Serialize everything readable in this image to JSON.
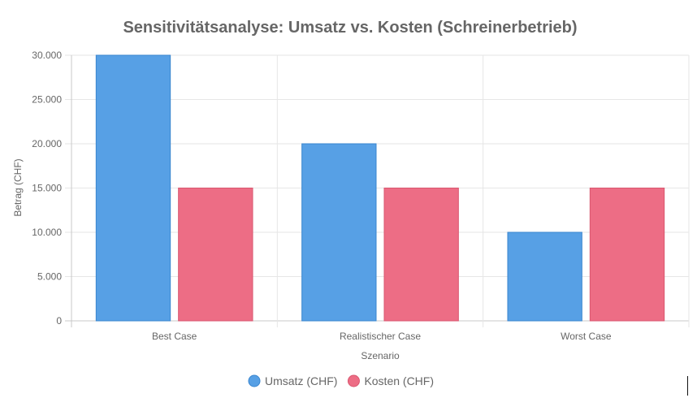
{
  "chart_data": {
    "type": "bar",
    "title": "Sensitivitätsanalyse: Umsatz vs. Kosten (Schreinerbetrieb)",
    "xlabel": "Szenario",
    "ylabel": "Betrag (CHF)",
    "categories": [
      "Best Case",
      "Realistischer Case",
      "Worst Case"
    ],
    "ylim": [
      0,
      30000
    ],
    "yticks": [
      0,
      5000,
      10000,
      15000,
      20000,
      25000,
      30000
    ],
    "ytick_labels": [
      "0",
      "5.000",
      "10.000",
      "15.000",
      "20.000",
      "25.000",
      "30.000"
    ],
    "grid": true,
    "legend_position": "bottom",
    "series": [
      {
        "name": "Umsatz (CHF)",
        "values": [
          30000,
          20000,
          10000
        ],
        "color": "#57a0e5",
        "border": "#3a86cf"
      },
      {
        "name": "Kosten (CHF)",
        "values": [
          15000,
          15000,
          15000
        ],
        "color": "#ed6d85",
        "border": "#d9566f"
      }
    ]
  }
}
